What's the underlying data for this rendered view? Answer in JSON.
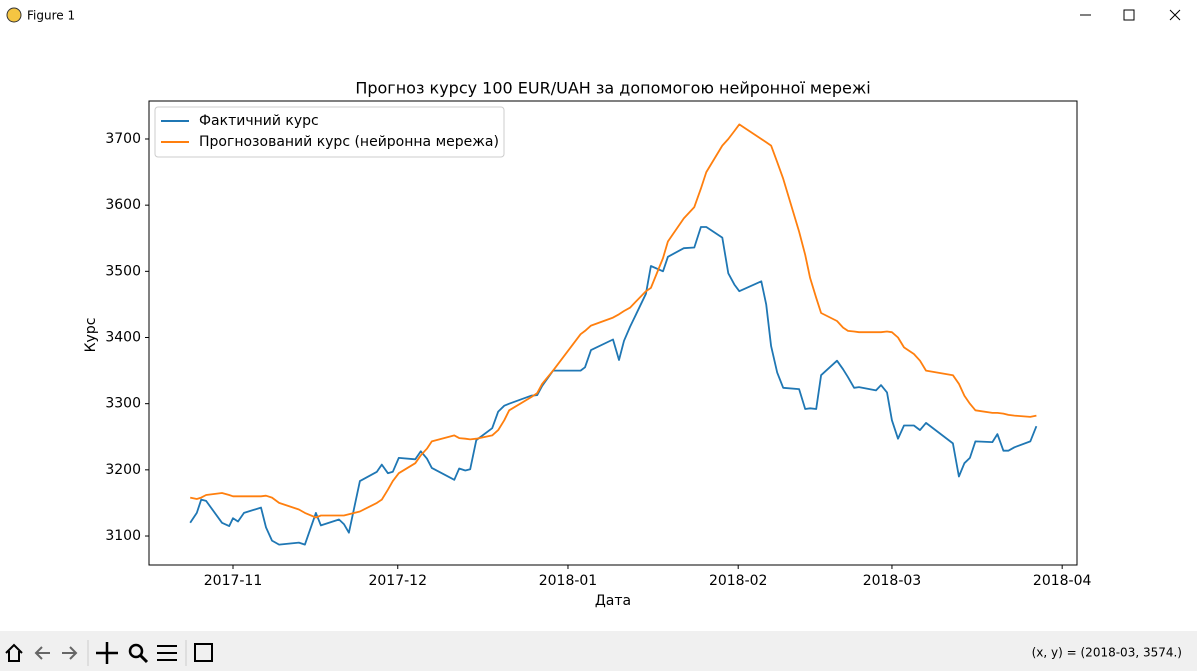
{
  "window": {
    "title": "Figure 1",
    "status": "(x, y) = (2018-03, 3574.)"
  },
  "chart_data": {
    "type": "line",
    "title": "Прогноз курсу 100 EUR/UAH за допомогою нейронної мережі",
    "xlabel": "Дата",
    "ylabel": "Курс",
    "x": [
      -7.8,
      -6.6,
      -5.8,
      -4.9,
      -2.0,
      -0.7,
      0,
      0.9,
      2.0,
      5.1,
      6.0,
      7.1,
      8.4,
      12.0,
      13.1,
      15.1,
      16.0,
      19.3,
      20.2,
      21.1,
      23.1,
      26.2,
      27.1,
      28.2,
      29.1,
      30.2,
      33.2,
      34.2,
      35.3,
      36.2,
      40.3,
      41.2,
      42.3,
      43.2,
      44.3,
      47.2,
      48.3,
      49.4,
      50.3,
      54.3,
      55.4,
      56.3,
      58.3,
      63.3,
      64.1,
      65.2,
      69.2,
      70.3,
      71.2,
      72.3,
      75.2,
      76.1,
      78.3,
      79.2,
      82.1,
      84.0,
      85.2,
      86.2,
      89.1,
      90.2,
      91.3,
      92.2,
      96.2,
      97.1,
      98.0,
      99.1,
      100.2,
      103.1,
      104.2,
      105.1,
      106.2,
      107.1,
      110.0,
      111.1,
      112.0,
      113.1,
      114.0,
      117.1,
      118.0,
      119.1,
      120.0,
      121.1,
      122.2,
      124.0,
      125.1,
      126.2,
      131.1,
      132.2,
      133.2,
      134.2,
      135.2,
      138.3,
      139.2,
      140.3,
      141.2,
      142.3,
      145.2,
      146.3
    ],
    "series": [
      {
        "name": "Фактичний курс",
        "color": "#1f77b4",
        "values": [
          3120,
          3135,
          3155,
          3153,
          3120,
          3115,
          3127,
          3122,
          3135,
          3143,
          3113,
          3093,
          3087,
          3090,
          3087,
          3135,
          3116,
          3125,
          3118,
          3105,
          3183,
          3197,
          3208,
          3195,
          3197,
          3218,
          3216,
          3228,
          3217,
          3203,
          3185,
          3202,
          3199,
          3201,
          3245,
          3263,
          3288,
          3297,
          3300,
          3312,
          3313,
          3327,
          3350,
          3350,
          3355,
          3381,
          3397,
          3366,
          3395,
          3416,
          3466,
          3508,
          3500,
          3522,
          3535,
          3536,
          3567,
          3567,
          3551,
          3497,
          3480,
          3470,
          3485,
          3450,
          3387,
          3347,
          3324,
          3322,
          3292,
          3293,
          3292,
          3343,
          3365,
          3352,
          3340,
          3324,
          3325,
          3320,
          3328,
          3317,
          3275,
          3247,
          3267,
          3267,
          3260,
          3271,
          3240,
          3190,
          3210,
          3218,
          3243,
          3242,
          3254,
          3229,
          3229,
          3234,
          3243,
          3266
        ]
      },
      {
        "name": "Прогнозований курс (нейронна мережа)",
        "color": "#ff7f0e",
        "values": [
          3158,
          3156,
          3158,
          3162,
          3165,
          3162,
          3160,
          3160,
          3160,
          3160,
          3161,
          3158,
          3150,
          3140,
          3135,
          3128,
          3131,
          3131,
          3131,
          3133,
          3137,
          3150,
          3155,
          3170,
          3183,
          3195,
          3210,
          3222,
          3232,
          3243,
          3252,
          3248,
          3247,
          3246,
          3247,
          3252,
          3260,
          3275,
          3290,
          3310,
          3316,
          3330,
          3350,
          3405,
          3410,
          3418,
          3430,
          3435,
          3440,
          3445,
          3470,
          3475,
          3520,
          3545,
          3580,
          3597,
          3625,
          3650,
          3690,
          3700,
          3712,
          3722,
          3700,
          3695,
          3690,
          3665,
          3640,
          3560,
          3525,
          3490,
          3460,
          3437,
          3425,
          3415,
          3410,
          3409,
          3408,
          3408,
          3408,
          3409,
          3408,
          3400,
          3385,
          3375,
          3365,
          3350,
          3343,
          3330,
          3312,
          3300,
          3290,
          3286,
          3286,
          3285,
          3283,
          3282,
          3280,
          3282
        ]
      }
    ],
    "xlim": [
      -15.3,
      153.7
    ],
    "xticks": [
      {
        "value": 0,
        "label": "2017-11"
      },
      {
        "value": 30,
        "label": "2017-12"
      },
      {
        "value": 61,
        "label": "2018-01"
      },
      {
        "value": 92,
        "label": "2018-02"
      },
      {
        "value": 120,
        "label": "2018-03"
      },
      {
        "value": 151,
        "label": "2018-04"
      }
    ],
    "ylim": [
      3056.2,
      3757.4
    ],
    "yticks": [
      3100,
      3200,
      3300,
      3400,
      3500,
      3600,
      3700
    ],
    "grid": false,
    "legend": "upper left"
  }
}
